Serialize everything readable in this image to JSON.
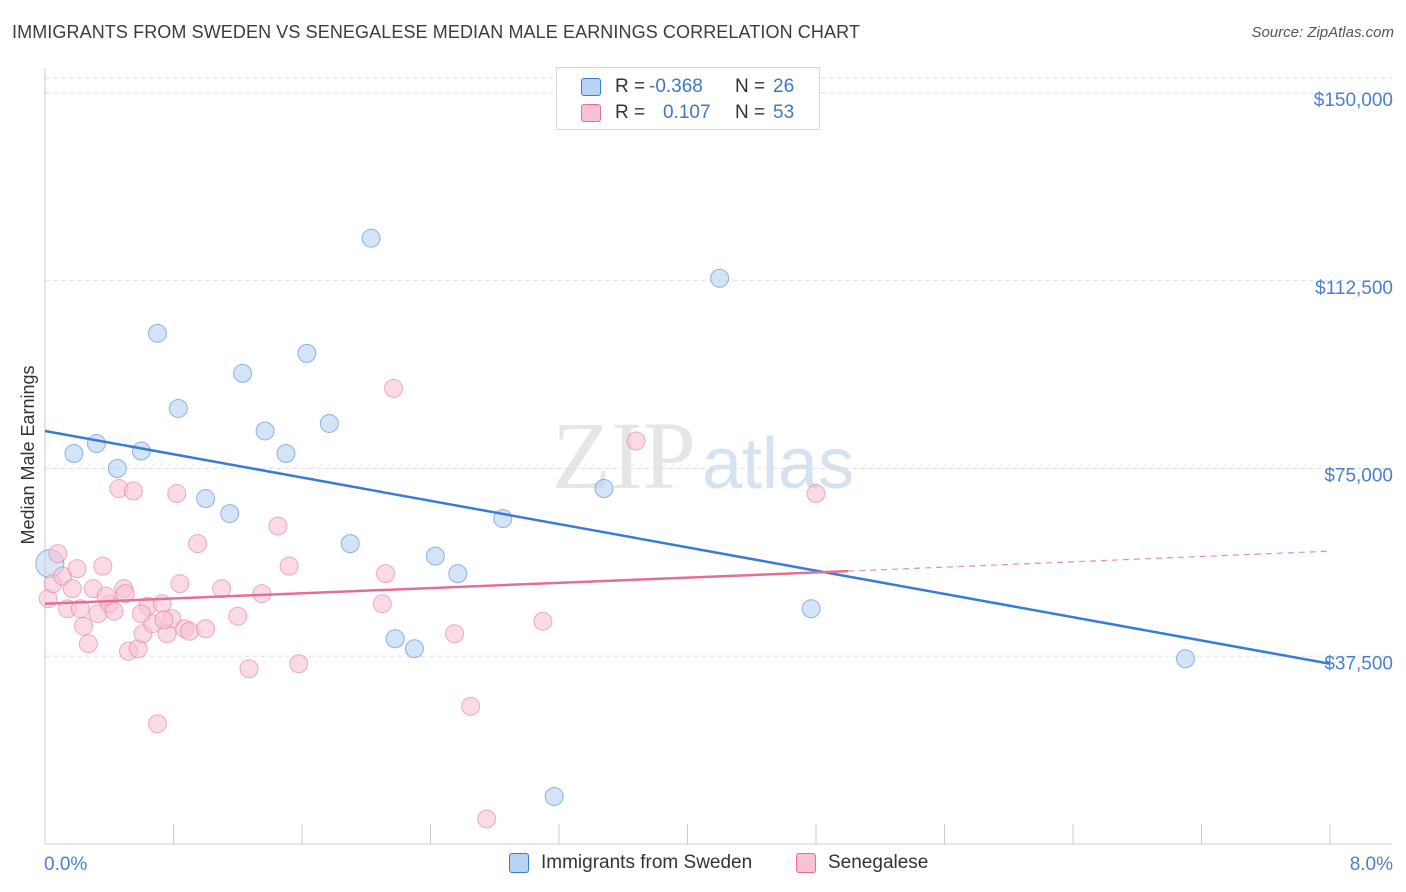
{
  "title": "IMMIGRANTS FROM SWEDEN VS SENEGALESE MEDIAN MALE EARNINGS CORRELATION CHART",
  "source": "Source: ZipAtlas.com",
  "watermark": {
    "zip": "ZIP",
    "atlas": "atlas"
  },
  "legend": {
    "rows": [
      {
        "r_label": "R =",
        "r_value": "-0.368",
        "n_label": "N =",
        "n_value": "26"
      },
      {
        "r_label": "R =",
        "r_value": "0.107",
        "n_label": "N =",
        "n_value": "53"
      }
    ]
  },
  "colors": {
    "blue": "#3a7bd5",
    "blue_fill": "#b8d2f3",
    "pink": "#e36f96",
    "pink_fill": "#f7c2d3",
    "axis_text": "#4a7fcf",
    "grid": "#dddddd"
  },
  "chart_data": {
    "type": "scatter",
    "title": "IMMIGRANTS FROM SWEDEN VS SENEGALESE MEDIAN MALE EARNINGS CORRELATION CHART",
    "xlabel": "",
    "ylabel": "Median Male Earnings",
    "xlim": [
      0,
      8
    ],
    "ylim": [
      0,
      155000
    ],
    "x_tick_labels": [
      "0.0%",
      "8.0%"
    ],
    "y_ticks": [
      {
        "value": 37500,
        "label": "$37,500"
      },
      {
        "value": 75000,
        "label": "$75,000"
      },
      {
        "value": 112500,
        "label": "$112,500"
      },
      {
        "value": 150000,
        "label": "$150,000"
      }
    ],
    "series": [
      {
        "name": "Immigrants from Sweden",
        "color": "#3a7bd5",
        "fill": "#b8d2f3",
        "R": -0.368,
        "N": 26,
        "trend": {
          "x0": 0,
          "y0": 82500,
          "x1": 8,
          "y1": 36000
        },
        "points": [
          {
            "x": 0.03,
            "y": 56000,
            "big": true
          },
          {
            "x": 0.18,
            "y": 78000
          },
          {
            "x": 0.32,
            "y": 80000
          },
          {
            "x": 0.45,
            "y": 75000
          },
          {
            "x": 0.6,
            "y": 78500
          },
          {
            "x": 0.7,
            "y": 102000
          },
          {
            "x": 0.83,
            "y": 87000
          },
          {
            "x": 1.0,
            "y": 69000
          },
          {
            "x": 1.15,
            "y": 66000
          },
          {
            "x": 1.23,
            "y": 94000
          },
          {
            "x": 1.37,
            "y": 82500
          },
          {
            "x": 1.5,
            "y": 78000
          },
          {
            "x": 1.63,
            "y": 98000
          },
          {
            "x": 1.77,
            "y": 84000
          },
          {
            "x": 1.9,
            "y": 60000
          },
          {
            "x": 2.03,
            "y": 121000
          },
          {
            "x": 2.18,
            "y": 41000
          },
          {
            "x": 2.3,
            "y": 39000
          },
          {
            "x": 2.43,
            "y": 57500
          },
          {
            "x": 2.57,
            "y": 54000
          },
          {
            "x": 2.85,
            "y": 65000
          },
          {
            "x": 3.17,
            "y": 9500
          },
          {
            "x": 3.48,
            "y": 71000
          },
          {
            "x": 4.2,
            "y": 113000
          },
          {
            "x": 4.77,
            "y": 47000
          },
          {
            "x": 7.1,
            "y": 37000
          }
        ]
      },
      {
        "name": "Senegalese",
        "color": "#e36f96",
        "fill": "#f7c2d3",
        "R": 0.107,
        "N": 53,
        "trend": {
          "x0": 0,
          "y0": 48000,
          "x1": 5.0,
          "y1": 54500
        },
        "trend_dashed": {
          "x0": 5.0,
          "y0": 54500,
          "x1": 8,
          "y1": 58500
        },
        "points": [
          {
            "x": 0.02,
            "y": 49000
          },
          {
            "x": 0.05,
            "y": 52000
          },
          {
            "x": 0.08,
            "y": 58000
          },
          {
            "x": 0.11,
            "y": 53500
          },
          {
            "x": 0.14,
            "y": 47000
          },
          {
            "x": 0.17,
            "y": 51000
          },
          {
            "x": 0.2,
            "y": 55000
          },
          {
            "x": 0.24,
            "y": 43500
          },
          {
            "x": 0.27,
            "y": 40000
          },
          {
            "x": 0.3,
            "y": 51000
          },
          {
            "x": 0.33,
            "y": 46000
          },
          {
            "x": 0.36,
            "y": 55500
          },
          {
            "x": 0.4,
            "y": 48000
          },
          {
            "x": 0.43,
            "y": 46500
          },
          {
            "x": 0.46,
            "y": 71000
          },
          {
            "x": 0.49,
            "y": 51000
          },
          {
            "x": 0.52,
            "y": 38500
          },
          {
            "x": 0.55,
            "y": 70500
          },
          {
            "x": 0.58,
            "y": 39000
          },
          {
            "x": 0.61,
            "y": 42000
          },
          {
            "x": 0.64,
            "y": 47500
          },
          {
            "x": 0.67,
            "y": 44000
          },
          {
            "x": 0.7,
            "y": 24000
          },
          {
            "x": 0.73,
            "y": 48000
          },
          {
            "x": 0.76,
            "y": 42000
          },
          {
            "x": 0.79,
            "y": 45000
          },
          {
            "x": 0.82,
            "y": 70000
          },
          {
            "x": 0.84,
            "y": 52000
          },
          {
            "x": 0.87,
            "y": 43000
          },
          {
            "x": 0.9,
            "y": 42500
          },
          {
            "x": 0.95,
            "y": 60000
          },
          {
            "x": 1.0,
            "y": 43000
          },
          {
            "x": 1.1,
            "y": 51000
          },
          {
            "x": 1.2,
            "y": 45500
          },
          {
            "x": 1.27,
            "y": 35000
          },
          {
            "x": 1.35,
            "y": 50000
          },
          {
            "x": 1.45,
            "y": 63500
          },
          {
            "x": 1.52,
            "y": 55500
          },
          {
            "x": 1.58,
            "y": 36000
          },
          {
            "x": 2.1,
            "y": 48000
          },
          {
            "x": 2.12,
            "y": 54000
          },
          {
            "x": 2.17,
            "y": 91000
          },
          {
            "x": 2.55,
            "y": 42000
          },
          {
            "x": 2.65,
            "y": 27500
          },
          {
            "x": 2.75,
            "y": 5000
          },
          {
            "x": 3.1,
            "y": 44500
          },
          {
            "x": 3.68,
            "y": 80500
          },
          {
            "x": 4.8,
            "y": 70000
          },
          {
            "x": 0.6,
            "y": 46000
          },
          {
            "x": 0.74,
            "y": 44800
          },
          {
            "x": 0.5,
            "y": 50000
          },
          {
            "x": 0.38,
            "y": 49500
          },
          {
            "x": 0.22,
            "y": 47000
          }
        ]
      }
    ]
  },
  "bottom_legend": [
    {
      "label": "Immigrants from Sweden"
    },
    {
      "label": "Senegalese"
    }
  ]
}
